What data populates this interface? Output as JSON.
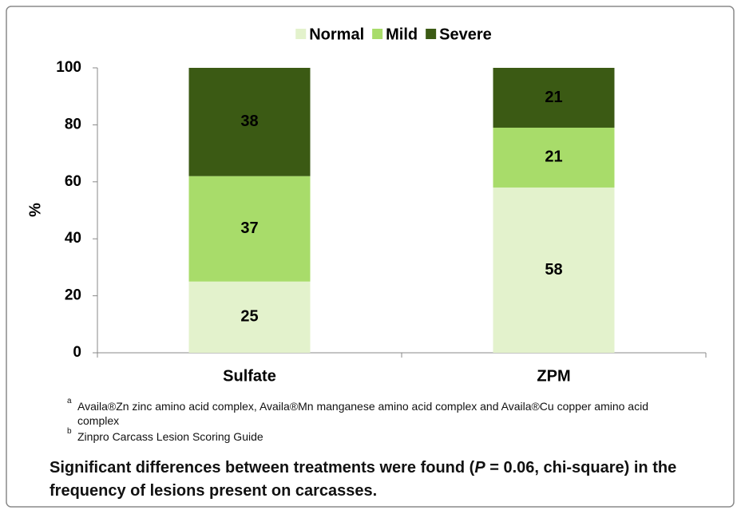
{
  "chart_data": {
    "type": "stacked-bar",
    "categories": [
      "Sulfate",
      "ZPM"
    ],
    "series": [
      {
        "name": "Normal",
        "color": "#e3f2cc",
        "values": [
          25,
          58
        ]
      },
      {
        "name": "Mild",
        "color": "#a8dc6a",
        "values": [
          37,
          21
        ]
      },
      {
        "name": "Severe",
        "color": "#3b5a14",
        "values": [
          38,
          21
        ]
      }
    ],
    "ylabel": "%",
    "ylim": [
      0,
      100
    ],
    "yticks": [
      0,
      20,
      40,
      60,
      80,
      100
    ],
    "legend": "top"
  },
  "footnotes": [
    {
      "marker": "a",
      "text": "Availa®Zn zinc amino acid complex, Availa®Mn manganese amino acid complex and Availa®Cu copper amino acid complex"
    },
    {
      "marker": "b",
      "text": "Zinpro Carcass Lesion Scoring Guide"
    }
  ],
  "conclusion": {
    "before": "Significant differences between treatments were found (",
    "italic": "P",
    "after": " = 0.06, chi-square) in the frequency of lesions present on carcasses."
  }
}
